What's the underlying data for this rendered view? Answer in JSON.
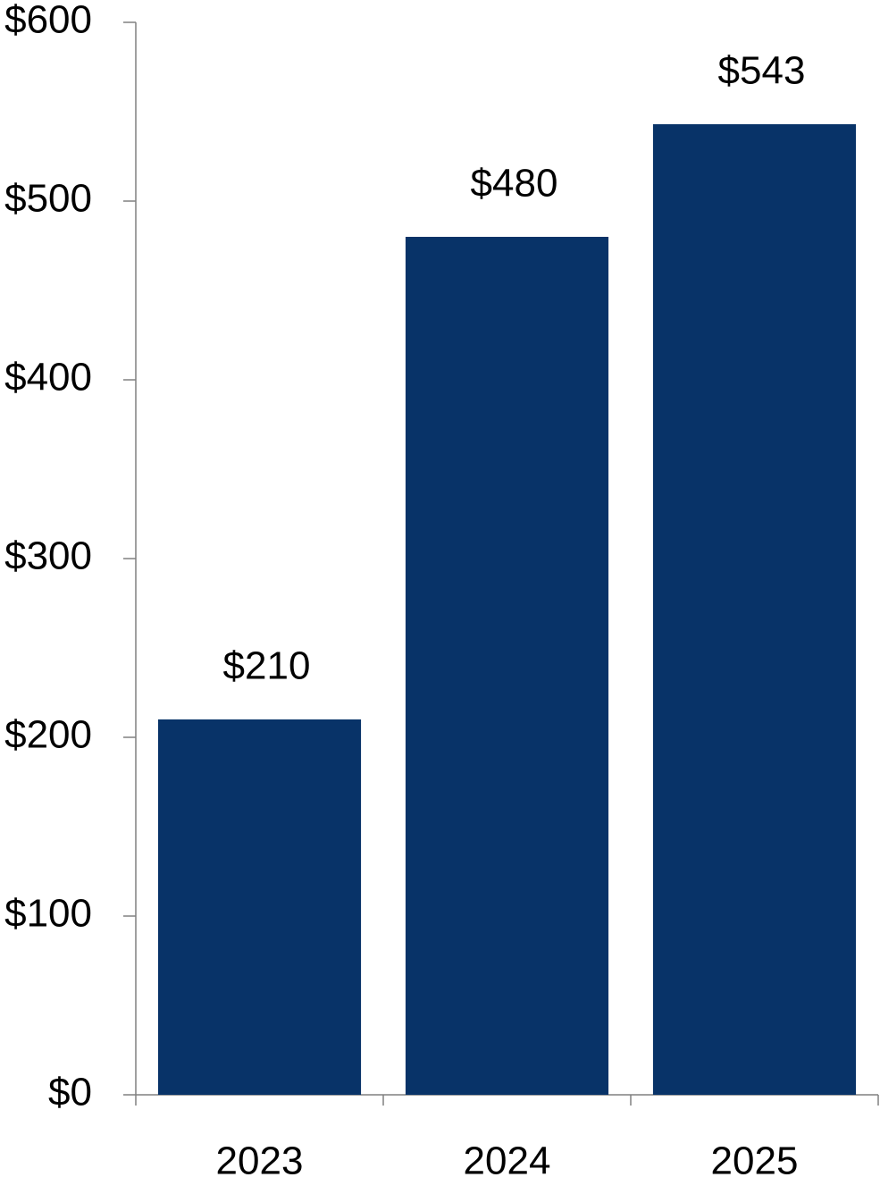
{
  "chart_data": {
    "type": "bar",
    "categories": [
      "2023",
      "2024",
      "2025"
    ],
    "values": [
      210,
      480,
      543
    ],
    "value_labels": [
      "$210",
      "$480",
      "$543"
    ],
    "color": "#083368",
    "ylim": [
      0,
      600
    ],
    "yticks": [
      {
        "value": 0,
        "label": "$0"
      },
      {
        "value": 100,
        "label": "$100"
      },
      {
        "value": 200,
        "label": "$200"
      },
      {
        "value": 300,
        "label": "$300"
      },
      {
        "value": 400,
        "label": "$400"
      },
      {
        "value": 500,
        "label": "$500"
      },
      {
        "value": 600,
        "label": "$600"
      }
    ],
    "grid": false
  }
}
